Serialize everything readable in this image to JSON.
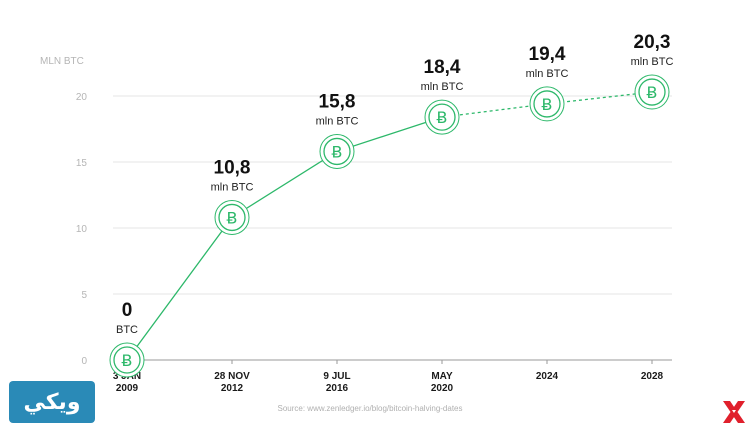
{
  "chart_data": {
    "type": "line",
    "title": "",
    "ylabel": "MLN BTC",
    "xlabel": "",
    "ylim": [
      0,
      22
    ],
    "yticks": [
      0,
      5,
      10,
      15,
      20
    ],
    "grid": true,
    "categories": [
      [
        "3 JAN",
        "2009"
      ],
      [
        "28 NOV",
        "2012"
      ],
      [
        "9 JUL",
        "2016"
      ],
      [
        "MAY",
        "2020"
      ],
      [
        "",
        "2024"
      ],
      [
        "",
        "2028"
      ]
    ],
    "values": [
      0,
      10.8,
      15.8,
      18.4,
      19.4,
      20.3
    ],
    "value_labels": [
      "0",
      "10,8",
      "15,8",
      "18,4",
      "19,4",
      "20,3"
    ],
    "unit_labels": [
      "BTC",
      "mln BTC",
      "mln BTC",
      "mln BTC",
      "mln BTC",
      "mln BTC"
    ],
    "projected_from_index": 3,
    "marker_icon": "bitcoin-icon",
    "colors": {
      "line": "#2db86a",
      "marker": "#2db86a"
    }
  },
  "source": "Source: www.zenledger.io/blog/bitcoin-halving-dates",
  "logo_left": {
    "icon": "wiki-logo-icon",
    "text": "ويكي"
  },
  "logo_right": {
    "icon": "x-logo-icon"
  }
}
